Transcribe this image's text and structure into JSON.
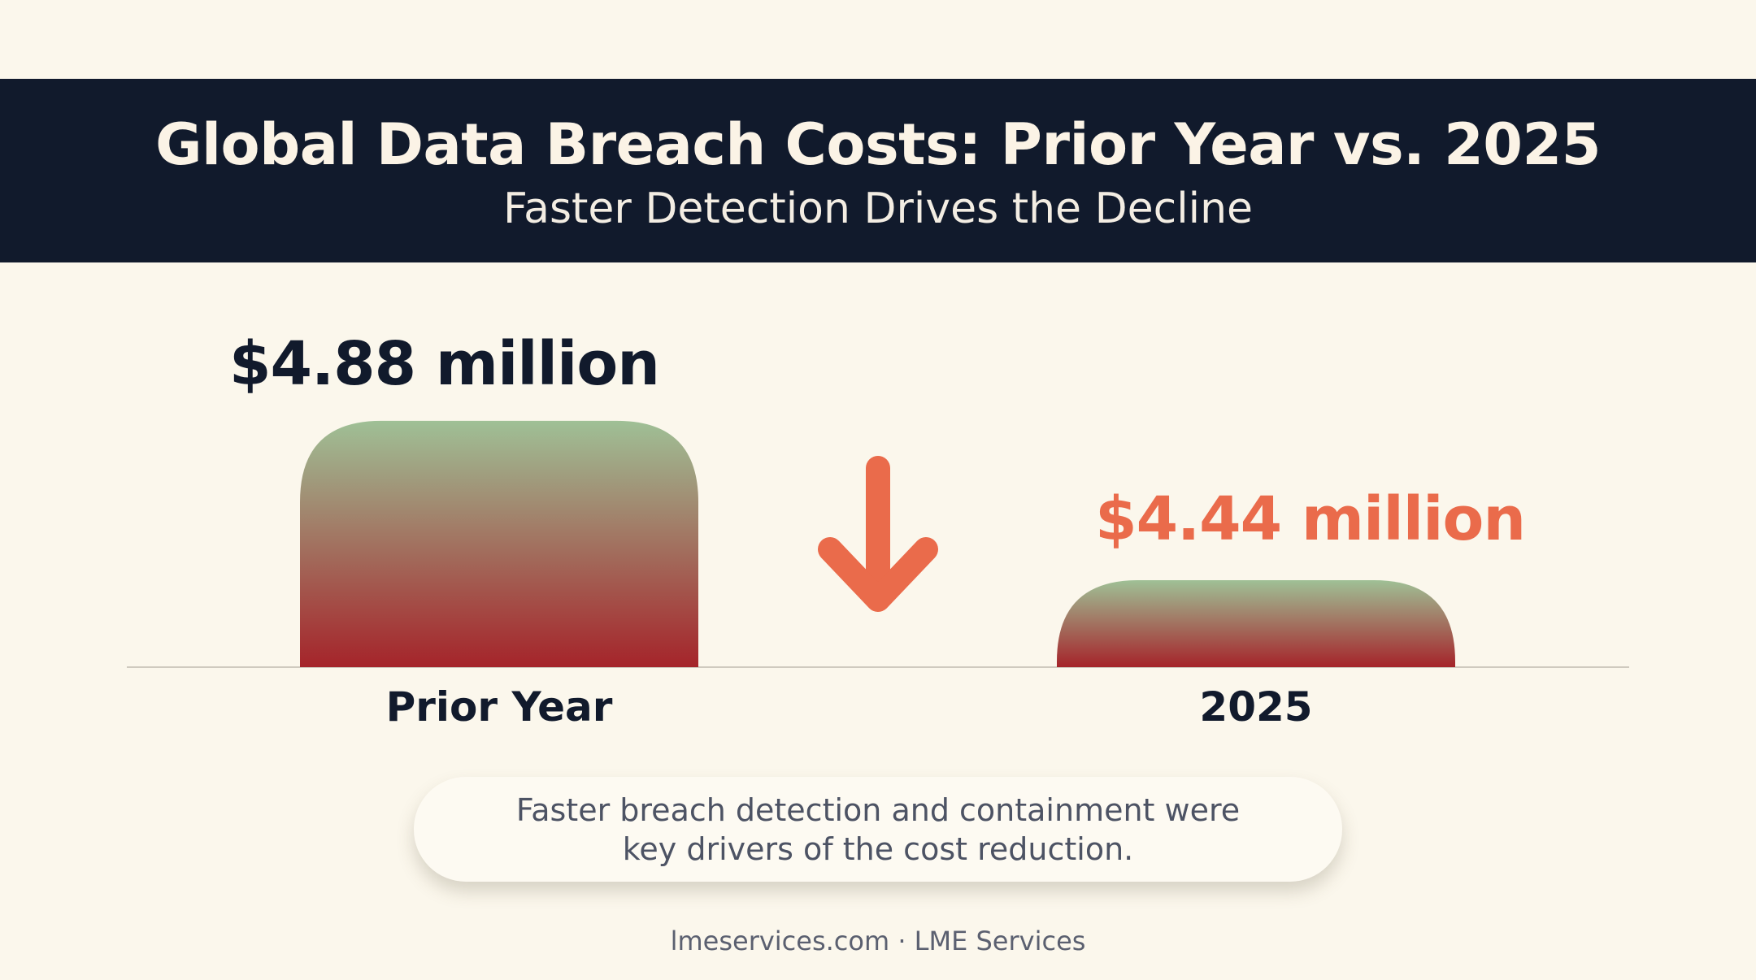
{
  "chart_data": {
    "type": "bar",
    "title": "Global Data Breach Costs: Prior Year vs. 2025",
    "subtitle": "Faster Detection Drives the Decline",
    "categories": [
      "Prior Year",
      "2025"
    ],
    "values": [
      4.88,
      4.44
    ],
    "data_labels": [
      "$4.88 million",
      "$4.44 million"
    ],
    "ylim": [
      4.2,
      4.9
    ],
    "grid": false,
    "legend": "none",
    "annotation": "Faster breach detection and containment were key drivers of the cost reduction.",
    "annotation_lines": [
      "Faster breach detection and containment were",
      "key drivers of the cost reduction."
    ],
    "trend_indicator": "down-arrow-icon"
  },
  "footer": {
    "text": "lmeservices.com · LME Services"
  },
  "colors": {
    "header_bg": "#111a2c",
    "background": "#fbf7ec",
    "bar_top": "#9fc096",
    "bar_bottom": "#a5242a",
    "accent": "#ea6b4b",
    "label_dark": "#111a2c"
  }
}
